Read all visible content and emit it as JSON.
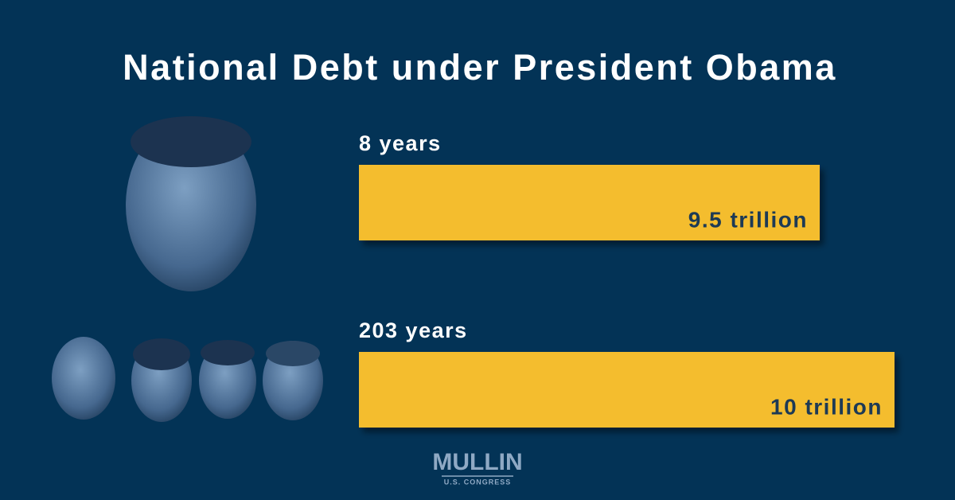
{
  "chart_data": {
    "type": "bar",
    "orientation": "horizontal",
    "title": "National Debt under President Obama",
    "categories": [
      "8 years",
      "203 years"
    ],
    "values": [
      9.5,
      10
    ],
    "value_labels": [
      "9.5 trillion",
      "10 trillion"
    ],
    "color": "#f4bd2f",
    "xlim": [
      6.42,
      10
    ]
  },
  "logo": {
    "name": "MULLIN",
    "subtitle": "U.S. CONGRESS"
  }
}
